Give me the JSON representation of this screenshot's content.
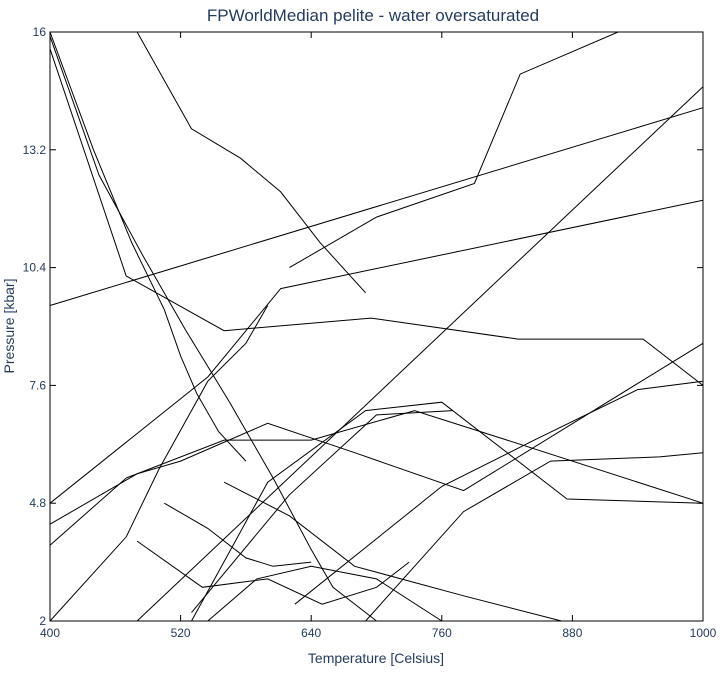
{
  "chart_data": {
    "type": "line",
    "title": "FPWorldMedian pelite - water oversaturated",
    "xlabel": "Temperature [Celsius]",
    "ylabel": "Pressure [kbar]",
    "xlim": [
      400,
      1000
    ],
    "ylim": [
      2,
      16
    ],
    "xticks": [
      "400",
      "520",
      "640",
      "760",
      "880",
      "1000"
    ],
    "yticks": [
      "2",
      "4.8",
      "7.6",
      "10.4",
      "13.2",
      "16"
    ],
    "grid": false,
    "series": [
      {
        "x": [
          400,
          1000
        ],
        "y": [
          9.5,
          14.2
        ]
      },
      {
        "x": [
          480,
          1000
        ],
        "y": [
          2.0,
          14.7
        ]
      },
      {
        "x": [
          400,
          545,
          612,
          1000
        ],
        "y": [
          4.8,
          7.8,
          9.9,
          12.0
        ]
      },
      {
        "x": [
          620,
          700,
          790,
          832,
          922,
          1000
        ],
        "y": [
          10.4,
          11.6,
          12.4,
          15.0,
          16.0,
          16.0
        ]
      },
      {
        "x": [
          400,
          470,
          560,
          695,
          830,
          945,
          1000
        ],
        "y": [
          15.6,
          10.2,
          8.9,
          9.2,
          8.7,
          8.7,
          7.6
        ]
      },
      {
        "x": [
          400,
          480,
          520,
          600,
          680,
          780,
          1000
        ],
        "y": [
          4.3,
          5.5,
          5.8,
          6.7,
          6.0,
          5.1,
          8.6
        ]
      },
      {
        "x": [
          400,
          470,
          560,
          640,
          735,
          820,
          1000
        ],
        "y": [
          3.8,
          5.4,
          6.3,
          6.3,
          7.0,
          6.3,
          4.8
        ]
      },
      {
        "x": [
          625,
          760,
          845,
          940,
          1000
        ],
        "y": [
          2.4,
          5.2,
          6.3,
          7.5,
          7.7
        ]
      },
      {
        "x": [
          690,
          780,
          860,
          960,
          1000
        ],
        "y": [
          2.0,
          4.6,
          5.8,
          5.9,
          6.0
        ]
      },
      {
        "x": [
          530,
          600,
          690,
          760,
          875,
          1000
        ],
        "y": [
          2.0,
          5.3,
          7.0,
          7.2,
          4.9,
          4.8
        ]
      },
      {
        "x": [
          560,
          620,
          680,
          780,
          870
        ],
        "y": [
          5.3,
          4.5,
          3.3,
          2.6,
          2.0
        ]
      },
      {
        "x": [
          530,
          620,
          700,
          770
        ],
        "y": [
          2.2,
          5.0,
          6.9,
          7.0
        ]
      },
      {
        "x": [
          545,
          590,
          640,
          700,
          760
        ],
        "y": [
          2.0,
          3.0,
          3.3,
          3.0,
          2.0
        ]
      },
      {
        "x": [
          480,
          530,
          575,
          612,
          648,
          690
        ],
        "y": [
          16.0,
          13.7,
          13.0,
          12.2,
          11.0,
          9.8
        ]
      },
      {
        "x": [
          400,
          440,
          475,
          505,
          520,
          535,
          555,
          580
        ],
        "y": [
          16.0,
          13.2,
          11.0,
          9.4,
          8.3,
          7.4,
          6.5,
          5.8
        ]
      },
      {
        "x": [
          400,
          445,
          485,
          525,
          565,
          605,
          640,
          660,
          700
        ],
        "y": [
          15.9,
          12.6,
          10.7,
          8.9,
          7.2,
          5.4,
          3.7,
          2.8,
          2.0
        ]
      },
      {
        "x": [
          505,
          545,
          580,
          605,
          640
        ],
        "y": [
          4.8,
          4.2,
          3.5,
          3.3,
          3.4
        ]
      },
      {
        "x": [
          400,
          470,
          500,
          545,
          580,
          600
        ],
        "y": [
          2.0,
          4.0,
          5.6,
          7.7,
          8.6,
          9.5
        ]
      },
      {
        "x": [
          480,
          540,
          600,
          650,
          700,
          730
        ],
        "y": [
          3.9,
          2.8,
          3.0,
          2.4,
          2.8,
          3.4
        ]
      }
    ]
  }
}
